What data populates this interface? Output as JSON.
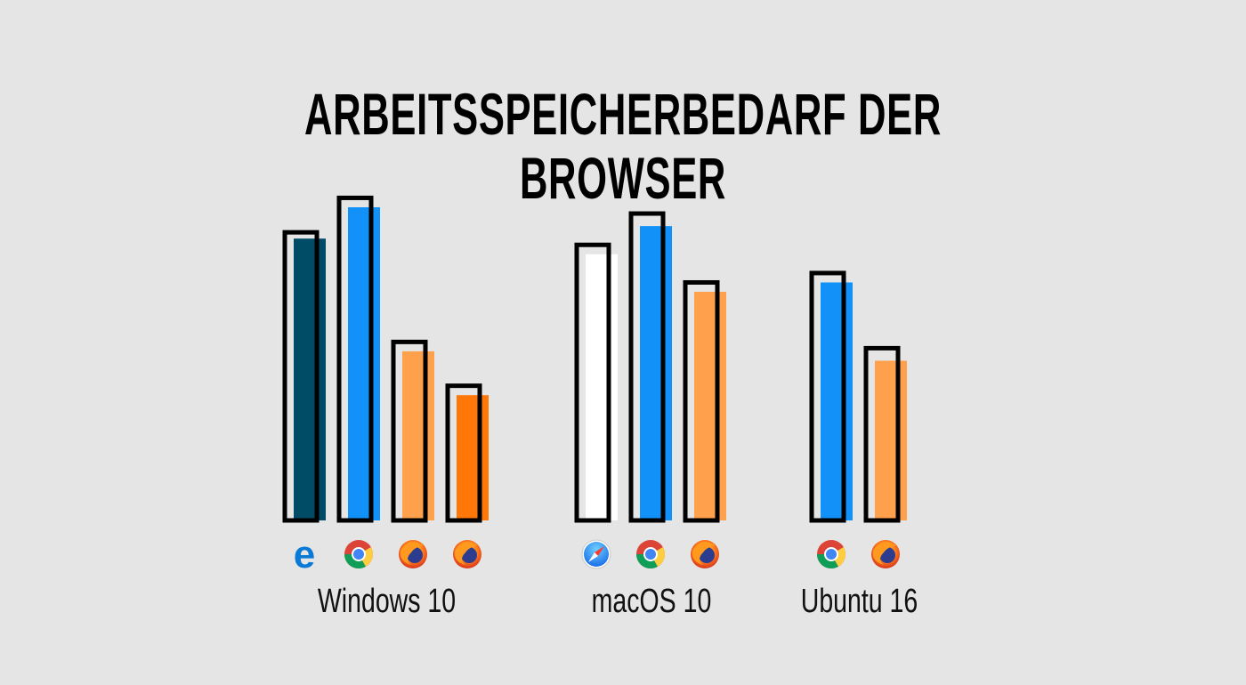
{
  "chart_data": {
    "type": "bar",
    "title": "ARBEITSSPEICHERBEDARF DER BROWSER",
    "xlabel": "",
    "ylabel": "",
    "ylim": [
      0,
      100
    ],
    "grid": false,
    "legend": "none",
    "groups": [
      {
        "label": "Windows 10",
        "bars": [
          {
            "browser": "Edge",
            "icon": "edge-icon",
            "color": "#004c67",
            "value": 90,
            "outline": 92
          },
          {
            "browser": "Chrome",
            "icon": "chrome-icon",
            "color": "#1292f9",
            "value": 100,
            "outline": 103
          },
          {
            "browser": "Firefox",
            "icon": "firefox-icon",
            "color": "#ffa04c",
            "value": 54,
            "outline": 57
          },
          {
            "browser": "Firefox",
            "icon": "firefox-icon",
            "color": "#ff7709",
            "value": 40,
            "outline": 43
          }
        ]
      },
      {
        "label": "macOS 10",
        "bars": [
          {
            "browser": "Safari",
            "icon": "safari-icon",
            "color": "#ffffff",
            "value": 85,
            "outline": 88
          },
          {
            "browser": "Chrome",
            "icon": "chrome-icon",
            "color": "#1292f9",
            "value": 94,
            "outline": 98
          },
          {
            "browser": "Firefox",
            "icon": "firefox-icon",
            "color": "#ffa04c",
            "value": 73,
            "outline": 76
          }
        ]
      },
      {
        "label": "Ubuntu 16",
        "bars": [
          {
            "browser": "Chrome",
            "icon": "chrome-icon",
            "color": "#1292f9",
            "value": 76,
            "outline": 79
          },
          {
            "browser": "Firefox",
            "icon": "firefox-icon",
            "color": "#ffa04c",
            "value": 51,
            "outline": 55
          }
        ]
      }
    ]
  }
}
